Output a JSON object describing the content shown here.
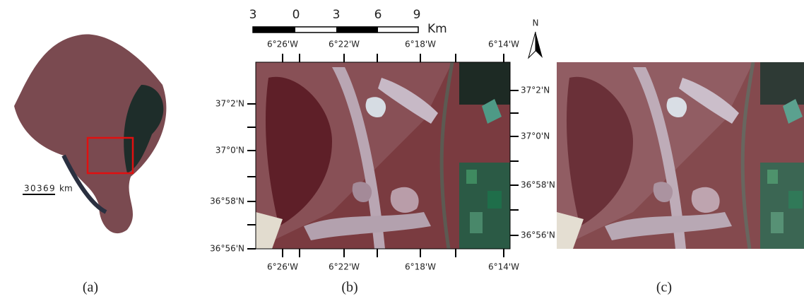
{
  "panel_a": {
    "scale_labels": [
      "3",
      "0",
      "3",
      "6",
      "9"
    ],
    "scale_unit": "km",
    "caption": "(a)"
  },
  "panel_b": {
    "scale_labels": [
      "3",
      "0",
      "3",
      "6",
      "9"
    ],
    "scale_unit": "Km",
    "north": "N",
    "top_lon": [
      "6°26'W",
      "6°22'W",
      "6°18'W",
      "6°14'W"
    ],
    "bottom_lon": [
      "6°26'W",
      "6°22'W",
      "6°18'W",
      "6°14'W"
    ],
    "left_lat": [
      "37°2'N",
      "37°0'N",
      "36°58'N",
      "36°56'N"
    ],
    "right_lat": [
      "37°2'N",
      "37°0'N",
      "36°58'N",
      "36°56'N"
    ],
    "caption": "(b)"
  },
  "panel_c": {
    "caption": "(c)"
  }
}
